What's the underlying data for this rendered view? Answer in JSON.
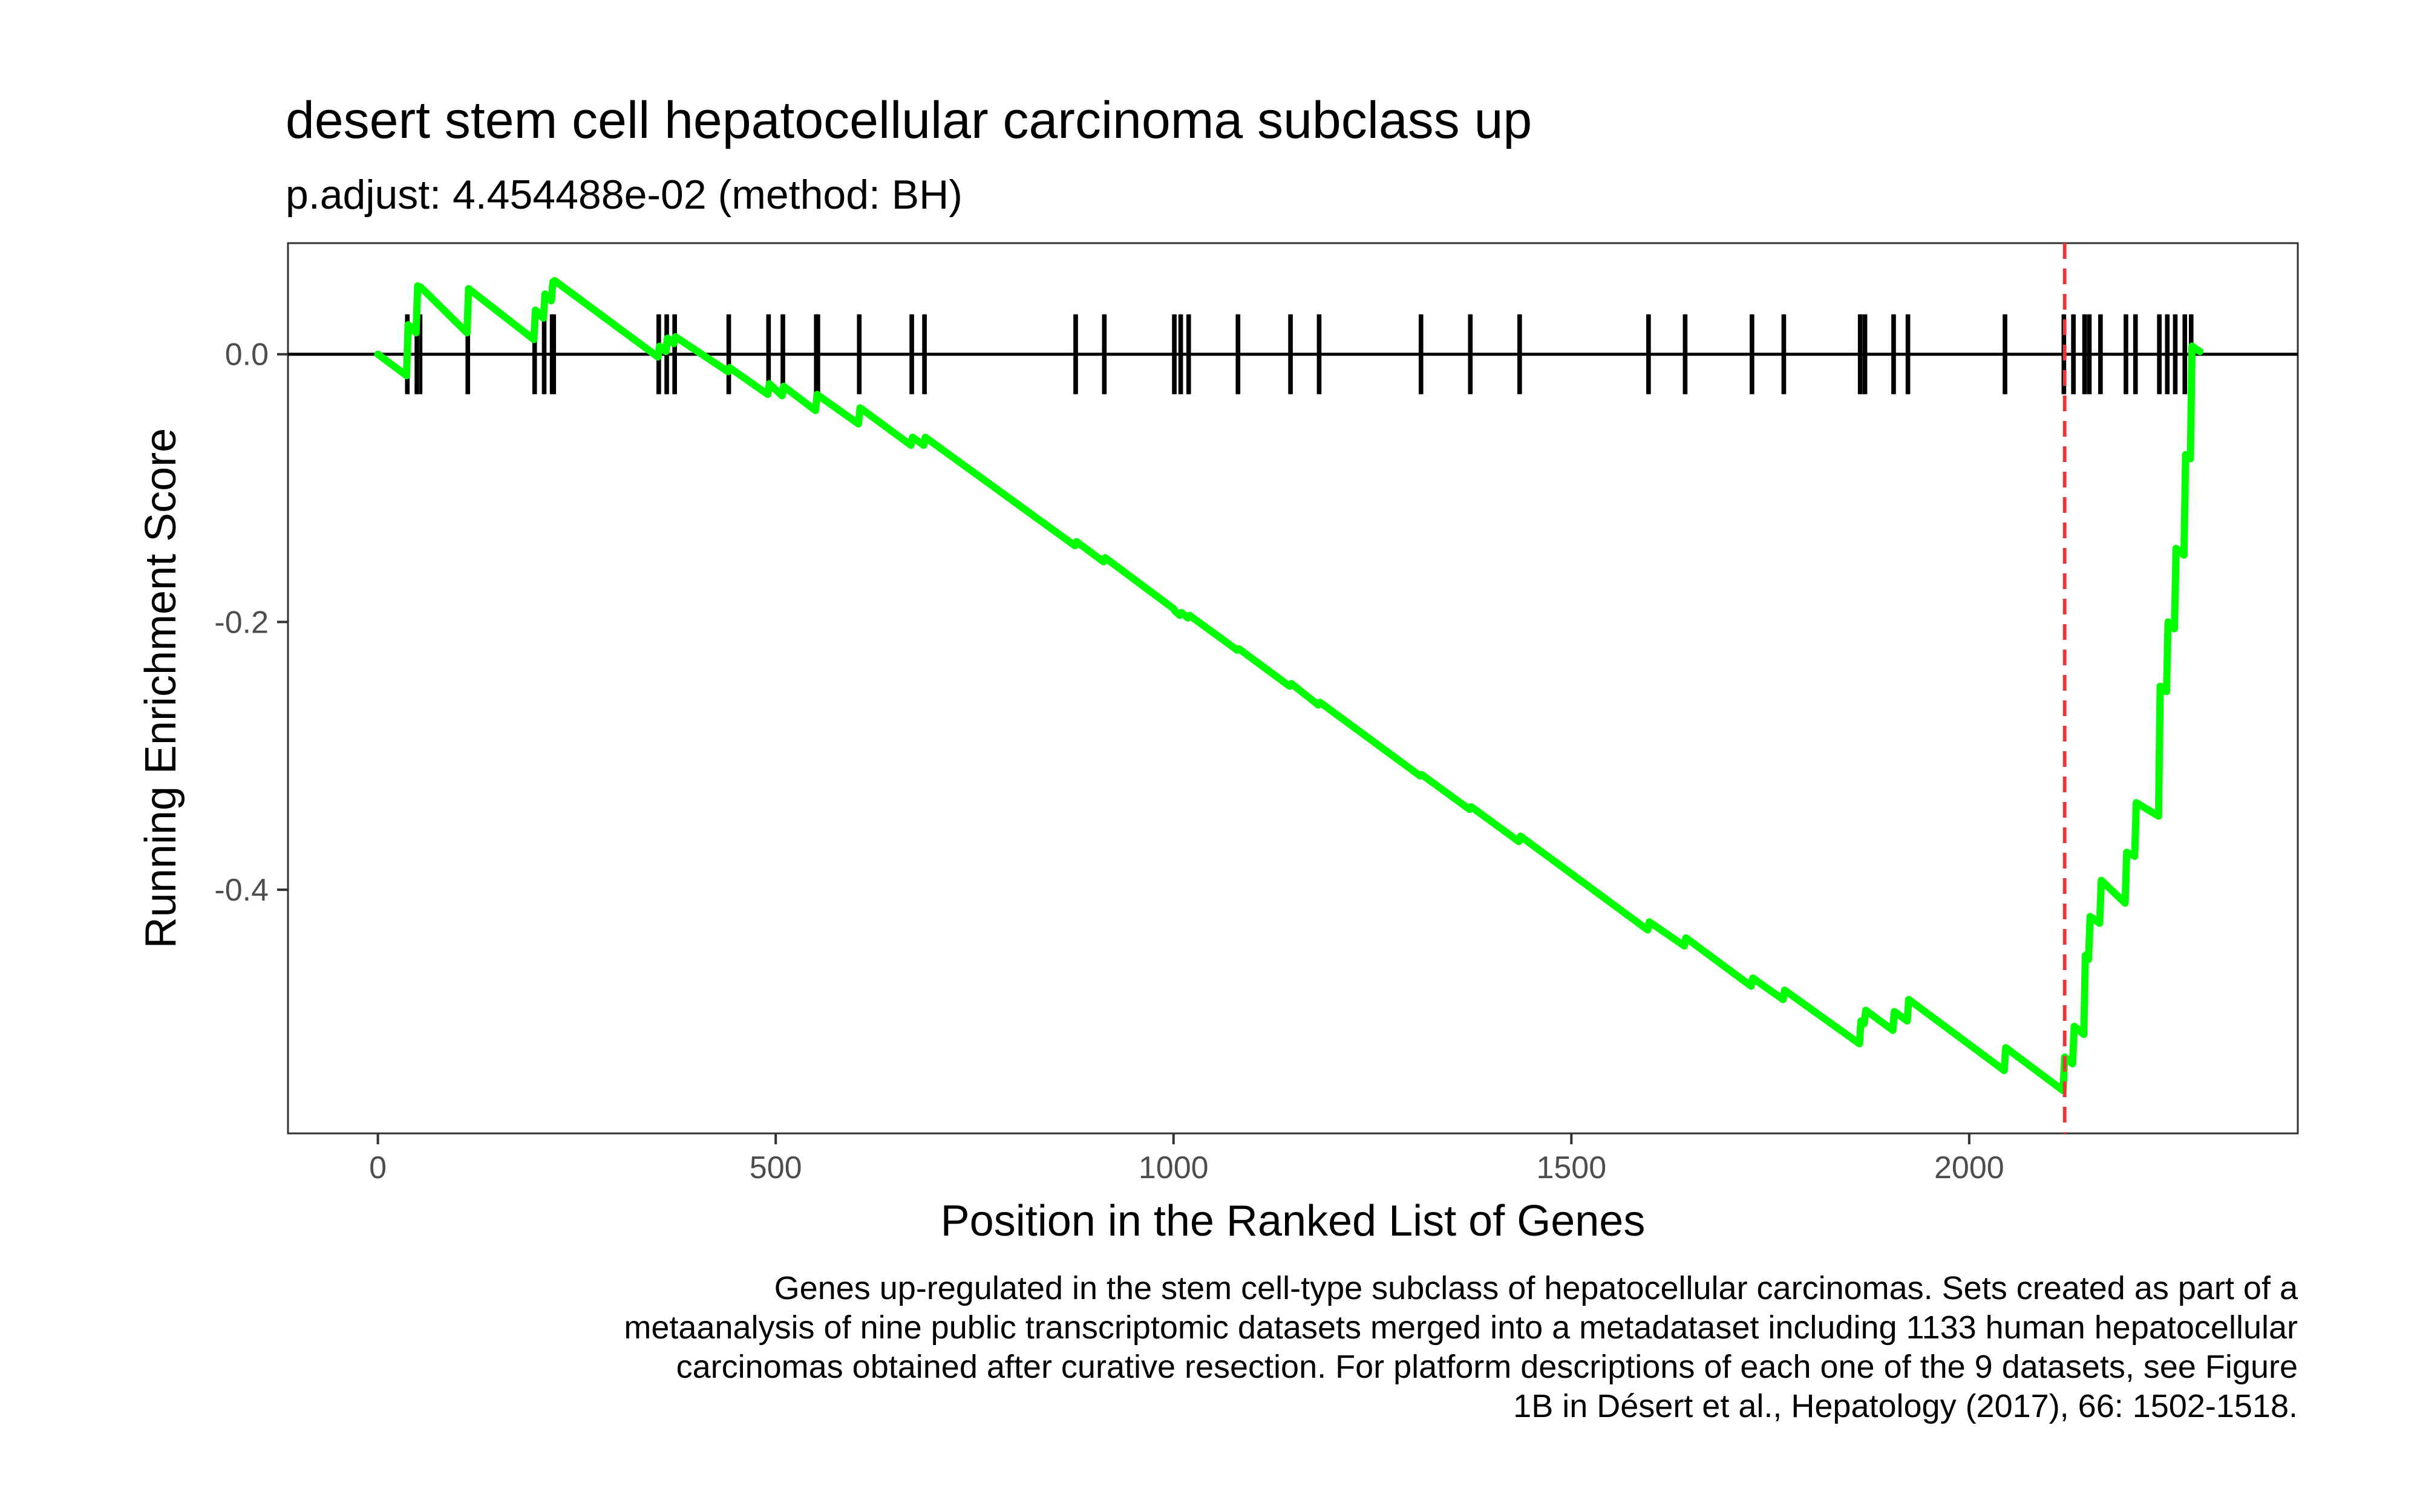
{
  "chart_data": {
    "type": "line",
    "title": "desert stem cell hepatocellular carcinoma subclass up",
    "subtitle": "p.adjust: 4.454488e-02 (method: BH)",
    "xlabel": "Position in the Ranked List of Genes",
    "ylabel": "Running Enrichment Score",
    "xlim": [
      -113,
      2413
    ],
    "ylim": [
      -0.582,
      0.083
    ],
    "x_ticks": [
      0,
      500,
      1000,
      1500,
      2000
    ],
    "x_tick_labels": [
      "0",
      "500",
      "1000",
      "1500",
      "2000"
    ],
    "y_ticks": [
      0.0,
      -0.2,
      -0.4
    ],
    "y_tick_labels": [
      "0.0",
      "-0.2",
      "-0.4"
    ],
    "grid": false,
    "line_color": "#00ff00",
    "max_deviation_color": "#e8383d",
    "max_deviation_position": 2120,
    "enrichment_curve": {
      "x": [
        0,
        36,
        38,
        48,
        50,
        54,
        112,
        114,
        196,
        198,
        208,
        210,
        218,
        220,
        222,
        352,
        354,
        362,
        364,
        372,
        374,
        440,
        442,
        490,
        492,
        508,
        510,
        550,
        552,
        554,
        604,
        606,
        670,
        672,
        686,
        688,
        876,
        878,
        912,
        914,
        1000,
        1002,
        1008,
        1010,
        1018,
        1020,
        1080,
        1082,
        1146,
        1148,
        1182,
        1184,
        1310,
        1312,
        1372,
        1374,
        1434,
        1436,
        1596,
        1598,
        1642,
        1644,
        1726,
        1728,
        1766,
        1768,
        1862,
        1864,
        1868,
        1870,
        1904,
        1906,
        1922,
        1924,
        2044,
        2046,
        2118,
        2120,
        2130,
        2132,
        2144,
        2146,
        2150,
        2152,
        2164,
        2166,
        2196,
        2198,
        2208,
        2210,
        2238,
        2240,
        2248,
        2250,
        2258,
        2260,
        2270,
        2272,
        2278,
        2280,
        2290
      ],
      "y": [
        0.0,
        -0.016,
        0.022,
        0.016,
        0.051,
        0.05,
        0.016,
        0.049,
        0.011,
        0.033,
        0.027,
        0.045,
        0.04,
        0.054,
        0.055,
        -0.002,
        0.006,
        0.002,
        0.012,
        0.008,
        0.013,
        -0.013,
        -0.01,
        -0.03,
        -0.022,
        -0.031,
        -0.024,
        -0.042,
        -0.03,
        -0.031,
        -0.052,
        -0.04,
        -0.068,
        -0.062,
        -0.068,
        -0.062,
        -0.143,
        -0.14,
        -0.155,
        -0.152,
        -0.19,
        -0.192,
        -0.195,
        -0.193,
        -0.197,
        -0.195,
        -0.221,
        -0.22,
        -0.248,
        -0.246,
        -0.262,
        -0.26,
        -0.315,
        -0.314,
        -0.34,
        -0.338,
        -0.364,
        -0.36,
        -0.43,
        -0.424,
        -0.442,
        -0.436,
        -0.472,
        -0.466,
        -0.482,
        -0.475,
        -0.515,
        -0.498,
        -0.5,
        -0.49,
        -0.505,
        -0.491,
        -0.498,
        -0.482,
        -0.535,
        -0.518,
        -0.55,
        -0.525,
        -0.53,
        -0.502,
        -0.508,
        -0.449,
        -0.452,
        -0.42,
        -0.425,
        -0.393,
        -0.41,
        -0.372,
        -0.375,
        -0.335,
        -0.345,
        -0.248,
        -0.252,
        -0.2,
        -0.205,
        -0.145,
        -0.15,
        -0.075,
        -0.078,
        0.006,
        0.002
      ]
    },
    "gene_hits": [
      36,
      38,
      48,
      50,
      54,
      112,
      114,
      196,
      198,
      208,
      210,
      218,
      220,
      222,
      352,
      354,
      362,
      364,
      372,
      374,
      440,
      442,
      490,
      492,
      508,
      510,
      550,
      552,
      554,
      604,
      606,
      670,
      672,
      686,
      688,
      876,
      878,
      912,
      914,
      1000,
      1002,
      1008,
      1010,
      1018,
      1020,
      1080,
      1082,
      1146,
      1148,
      1182,
      1184,
      1310,
      1312,
      1372,
      1374,
      1434,
      1436,
      1596,
      1598,
      1642,
      1644,
      1726,
      1728,
      1766,
      1768,
      1862,
      1864,
      1868,
      1870,
      1904,
      1906,
      1922,
      1924,
      2044,
      2046,
      2118,
      2120,
      2130,
      2132,
      2144,
      2146,
      2150,
      2152,
      2164,
      2166,
      2196,
      2198,
      2208,
      2210,
      2238,
      2240,
      2248,
      2250,
      2258,
      2260,
      2270,
      2272,
      2278,
      2280
    ],
    "caption": [
      "Genes up-regulated in the stem cell-type subclass of hepatocellular carcinomas. Sets created as part of a",
      "metaanalysis of nine public transcriptomic datasets merged into a metadataset including 1133 human hepatocellular",
      "carcinomas obtained after curative resection. For platform descriptions of each one of the 9 datasets, see Figure",
      "1B in Désert et al., Hepatology (2017), 66: 1502-1518."
    ]
  }
}
